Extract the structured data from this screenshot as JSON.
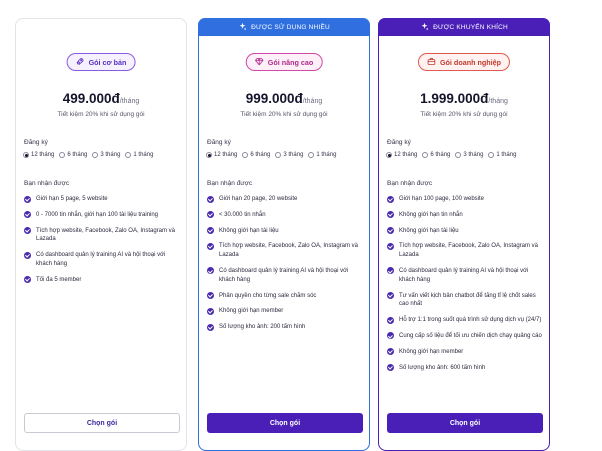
{
  "plans": [
    {
      "name": "Gói cơ bản",
      "icon": "rocket-icon",
      "price": "499.000đ",
      "per": "/tháng",
      "saving": "Tiết kiệm 20% khi sử dụng gói",
      "register_label": "Đăng ký",
      "durations": [
        "12 tháng",
        "6 tháng",
        "3 tháng",
        "1 tháng"
      ],
      "features_label": "Bạn nhận được",
      "features": [
        "Giới hạn 5 page, 5 website",
        "0 - 7000 tin nhắn, giới hạn 100 tài liệu training",
        "Tích hợp website, Facebook, Zalo OA, Instagram và Lazada",
        "Có dashboard quản lý training AI và hội thoại với khách hàng",
        "Tối đa 5 member"
      ],
      "button": "Chọn gói"
    },
    {
      "banner": "ĐƯỢC SỬ DỤNG NHIỀU",
      "banner_color": "#2f6fe0",
      "name": "Gói nâng cao",
      "icon": "diamond-icon",
      "price": "999.000đ",
      "per": "/tháng",
      "saving": "Tiết kiệm 20% khi sử dụng gói",
      "register_label": "Đăng ký",
      "durations": [
        "12 tháng",
        "6 tháng",
        "3 tháng",
        "1 tháng"
      ],
      "features_label": "Bạn nhận được",
      "features": [
        "Giới hạn 20 page, 20 website",
        "< 30.000 tin nhắn",
        "Không giới hạn tài liệu",
        "Tích hợp website, Facebook, Zalo OA, Instagram và Lazada",
        "Có dashboard quản lý training AI và hội thoại với khách hàng",
        "Phân quyền cho từng sale chăm sóc",
        "Không giới hạn member",
        "Số lượng kho ảnh: 200 tấm hình"
      ],
      "button": "Chọn gói"
    },
    {
      "banner": "ĐƯỢC KHUYẾN KHÍCH",
      "banner_color": "#4a1fb8",
      "name": "Gói doanh nghiệp",
      "icon": "briefcase-icon",
      "price": "1.999.000đ",
      "per": "/tháng",
      "saving": "Tiết kiệm 20% khi sử dụng gói",
      "register_label": "Đăng ký",
      "durations": [
        "12 tháng",
        "6 tháng",
        "3 tháng",
        "1 tháng"
      ],
      "features_label": "Bạn nhận được",
      "features": [
        "Giới hạn 100 page, 100 website",
        "Không giới hạn tin nhắn",
        "Không giới hạn tài liệu",
        "Tích hợp website, Facebook, Zalo OA, Instagram và Lazada",
        "Có dashboard quản lý training AI và hội thoại với khách hàng",
        "Tư vấn viết kịch bản chatbot để tăng tỉ lệ chốt sales cao nhất",
        "Hỗ trợ 1:1 trong suốt quá trình sử dụng dịch vụ (24/7)",
        "Cung cấp số liệu để tối ưu chiến dịch chạy quảng cáo",
        "Không giới hạn member",
        "Số lượng kho ảnh: 600 tấm hình"
      ],
      "button": "Chọn gói"
    }
  ],
  "colors": {
    "accent": "#4a1fb8",
    "check": "#4a2bb0",
    "pill_basic": "#6a3fd0",
    "pill_advanced": "#c0309a",
    "pill_enterprise": "#d0403a"
  }
}
